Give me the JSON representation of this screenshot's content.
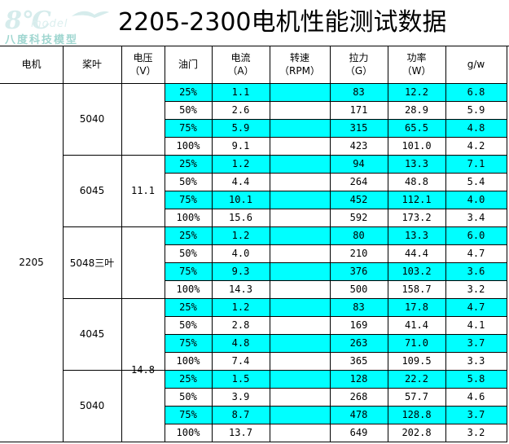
{
  "title": "2205-2300电机性能测试数据",
  "logo": {
    "main": "8℃",
    "brand": "model",
    "subtitle": "八度科技模型"
  },
  "headers": {
    "motor": "电机",
    "prop": "桨叶",
    "voltage": {
      "name": "电压",
      "unit": "（V）"
    },
    "throttle": "油门",
    "current": {
      "name": "电流",
      "unit": "（A）"
    },
    "rpm": {
      "name": "转速",
      "unit": "（RPM）"
    },
    "thrust": {
      "name": "拉力",
      "unit": "（G）"
    },
    "power": {
      "name": "功率",
      "unit": "（W）"
    },
    "efficiency": "g/w"
  },
  "motor": "2205",
  "highlight_color": "#00ffff",
  "voltages": [
    {
      "value": "11.1",
      "props": [
        "5040",
        "6045",
        "5048三叶"
      ]
    },
    {
      "value": "14.8",
      "props": [
        "4045",
        "5040"
      ]
    }
  ],
  "props": [
    {
      "name": "5040",
      "rows": [
        {
          "throttle": "25%",
          "current": "1.1",
          "rpm": "",
          "thrust": "83",
          "power": "12.2",
          "gw": "6.8"
        },
        {
          "throttle": "50%",
          "current": "2.6",
          "rpm": "",
          "thrust": "171",
          "power": "28.9",
          "gw": "5.9"
        },
        {
          "throttle": "75%",
          "current": "5.9",
          "rpm": "",
          "thrust": "315",
          "power": "65.5",
          "gw": "4.8"
        },
        {
          "throttle": "100%",
          "current": "9.1",
          "rpm": "",
          "thrust": "423",
          "power": "101.0",
          "gw": "4.2"
        }
      ]
    },
    {
      "name": "6045",
      "rows": [
        {
          "throttle": "25%",
          "current": "1.2",
          "rpm": "",
          "thrust": "94",
          "power": "13.3",
          "gw": "7.1"
        },
        {
          "throttle": "50%",
          "current": "4.4",
          "rpm": "",
          "thrust": "264",
          "power": "48.8",
          "gw": "5.4"
        },
        {
          "throttle": "75%",
          "current": "10.1",
          "rpm": "",
          "thrust": "452",
          "power": "112.1",
          "gw": "4.0"
        },
        {
          "throttle": "100%",
          "current": "15.6",
          "rpm": "",
          "thrust": "592",
          "power": "173.2",
          "gw": "3.4"
        }
      ]
    },
    {
      "name": "5048三叶",
      "rows": [
        {
          "throttle": "25%",
          "current": "1.2",
          "rpm": "",
          "thrust": "80",
          "power": "13.3",
          "gw": "6.0"
        },
        {
          "throttle": "50%",
          "current": "4.0",
          "rpm": "",
          "thrust": "210",
          "power": "44.4",
          "gw": "4.7"
        },
        {
          "throttle": "75%",
          "current": "9.3",
          "rpm": "",
          "thrust": "376",
          "power": "103.2",
          "gw": "3.6"
        },
        {
          "throttle": "100%",
          "current": "14.3",
          "rpm": "",
          "thrust": "500",
          "power": "158.7",
          "gw": "3.2"
        }
      ]
    },
    {
      "name": "4045",
      "rows": [
        {
          "throttle": "25%",
          "current": "1.2",
          "rpm": "",
          "thrust": "83",
          "power": "17.8",
          "gw": "4.7"
        },
        {
          "throttle": "50%",
          "current": "2.8",
          "rpm": "",
          "thrust": "169",
          "power": "41.4",
          "gw": "4.1"
        },
        {
          "throttle": "75%",
          "current": "4.8",
          "rpm": "",
          "thrust": "263",
          "power": "71.0",
          "gw": "3.7"
        },
        {
          "throttle": "100%",
          "current": "7.4",
          "rpm": "",
          "thrust": "365",
          "power": "109.5",
          "gw": "3.3"
        }
      ]
    },
    {
      "name": "5040",
      "rows": [
        {
          "throttle": "25%",
          "current": "1.5",
          "rpm": "",
          "thrust": "128",
          "power": "22.2",
          "gw": "5.8"
        },
        {
          "throttle": "50%",
          "current": "3.9",
          "rpm": "",
          "thrust": "268",
          "power": "57.7",
          "gw": "4.6"
        },
        {
          "throttle": "75%",
          "current": "8.7",
          "rpm": "",
          "thrust": "478",
          "power": "128.8",
          "gw": "3.7"
        },
        {
          "throttle": "100%",
          "current": "13.7",
          "rpm": "",
          "thrust": "649",
          "power": "202.8",
          "gw": "3.2"
        }
      ]
    }
  ]
}
